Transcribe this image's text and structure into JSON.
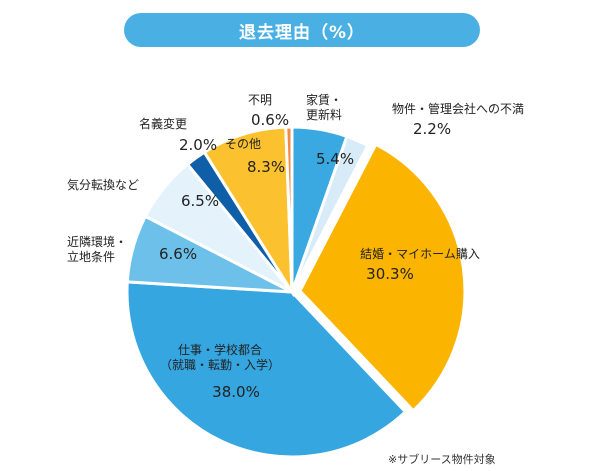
{
  "chart_data": {
    "type": "pie",
    "title": "退去理由（%）",
    "note": "※サブリース物件対象",
    "slices": [
      {
        "label": "家賃・\n更新料",
        "value": 5.4,
        "value_text": "5.4%",
        "color": "#3aa9e2"
      },
      {
        "label": "物件・管理会社への不満",
        "value": 2.2,
        "value_text": "2.2%",
        "color": "#d7ecf8"
      },
      {
        "label": "結婚・マイホーム購入",
        "value": 30.3,
        "value_text": "30.3%",
        "color": "#fbb400"
      },
      {
        "label": "仕事・学校都合\n（就職・転勤・入学）",
        "value": 38.0,
        "value_text": "38.0%",
        "color": "#35a6df"
      },
      {
        "label": "近隣環境・\n立地条件",
        "value": 6.6,
        "value_text": "6.6%",
        "color": "#6cc0ea"
      },
      {
        "label": "気分転換など",
        "value": 6.5,
        "value_text": "6.5%",
        "color": "#e3f2fb"
      },
      {
        "label": "名義変更",
        "value": 2.0,
        "value_text": "2.0%",
        "color": "#0f5fa8"
      },
      {
        "label": "その他",
        "value": 8.3,
        "value_text": "8.3%",
        "color": "#fbc12e"
      },
      {
        "label": "不明",
        "value": 0.6,
        "value_text": "0.6%",
        "color": "#f08a46"
      }
    ]
  },
  "colors": {
    "title_bg": "#4ab0e4",
    "title_text": "#ffffff",
    "slice_border": "#ffffff"
  }
}
